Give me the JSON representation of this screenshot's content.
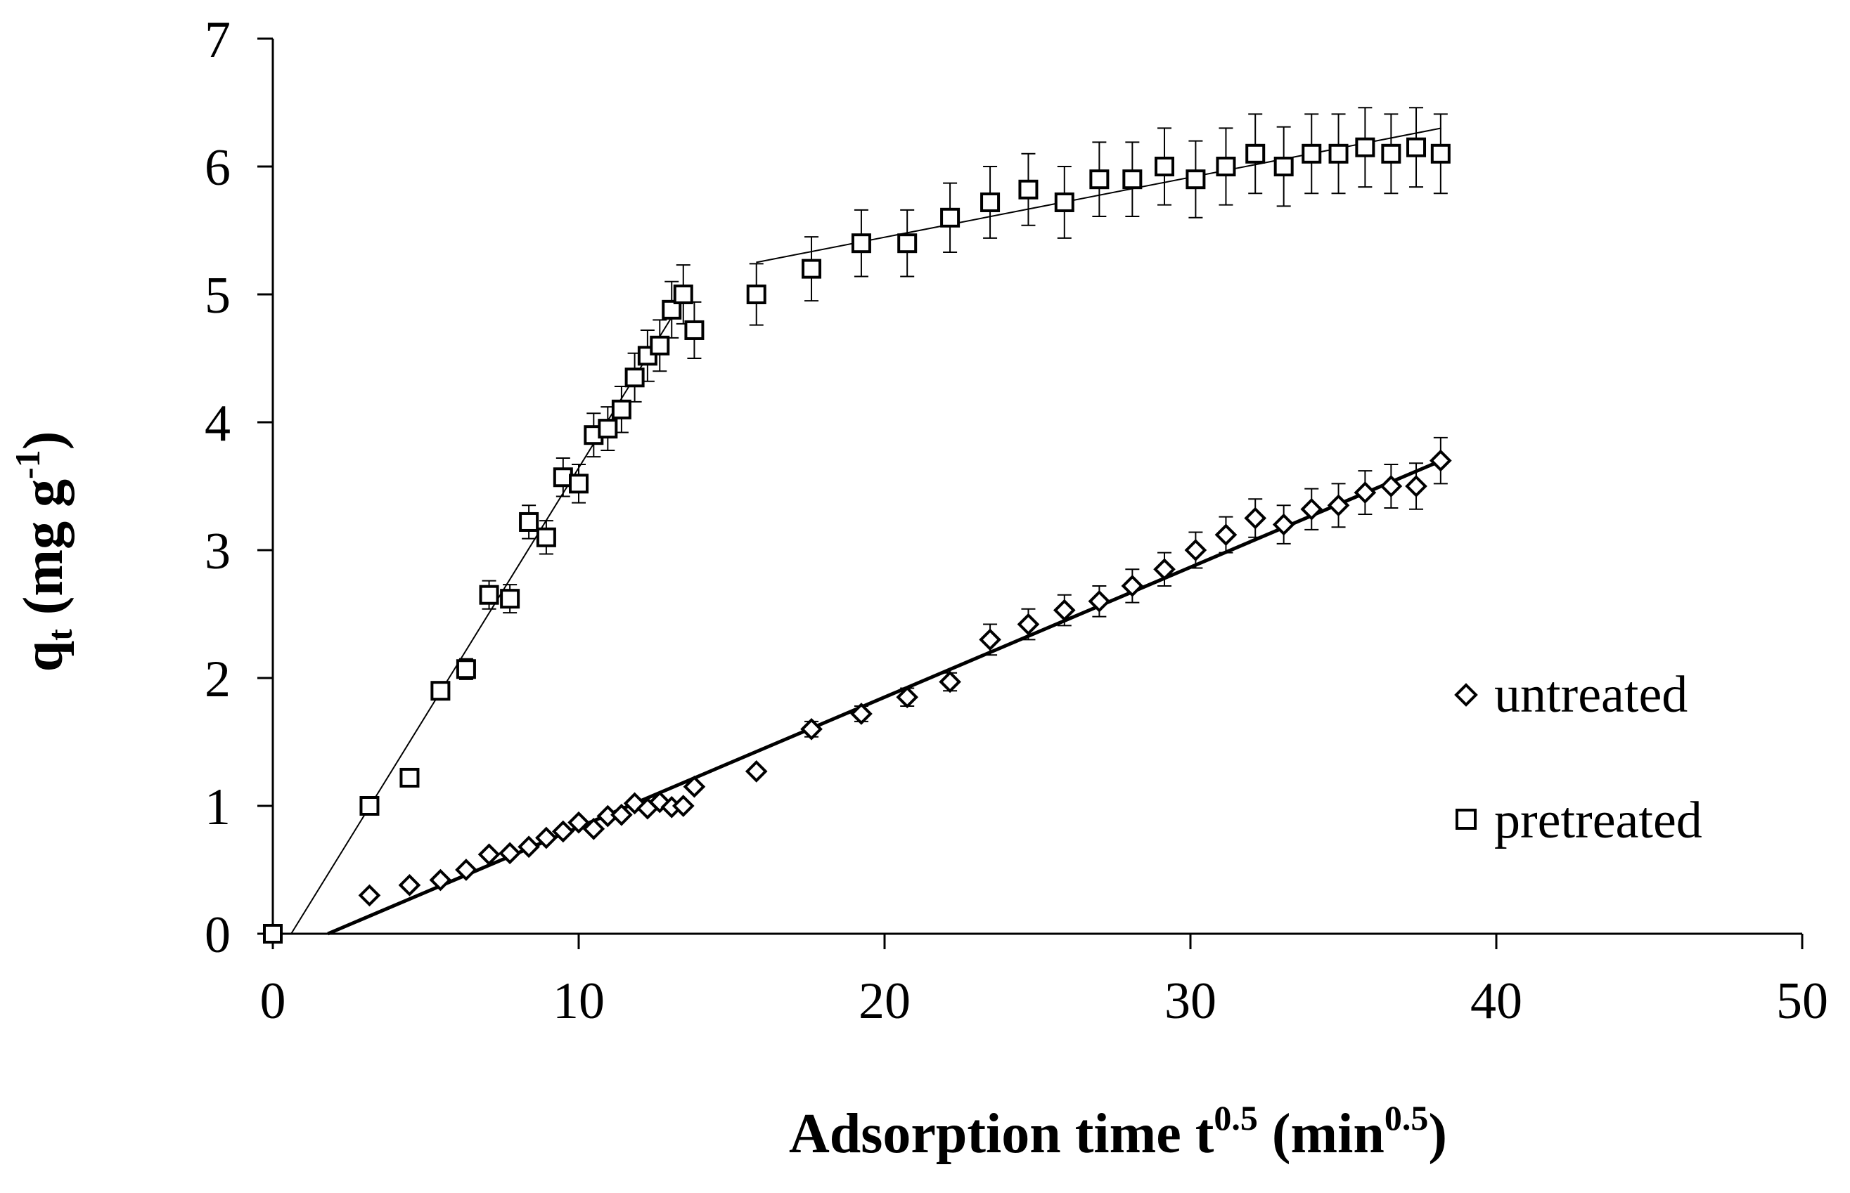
{
  "chart_data": {
    "type": "scatter",
    "title": "",
    "xlabel": {
      "base": "Adsorption time t",
      "sup": "0.5",
      "unit_open": " (min",
      "unit_sup": "0.5",
      "unit_close": ")"
    },
    "ylabel": {
      "base": "q",
      "sub": "t",
      "unit": " (mg g",
      "unit_sup": "-1",
      "unit_close": ")"
    },
    "xlim": [
      0,
      50
    ],
    "ylim": [
      0,
      7
    ],
    "xticks": [
      0,
      10,
      20,
      30,
      40,
      50
    ],
    "yticks": [
      0,
      1,
      2,
      3,
      4,
      5,
      6,
      7
    ],
    "grid": false,
    "legend_position": "right",
    "series": [
      {
        "name": "untreated",
        "marker": "diamond",
        "x": [
          0,
          3.16,
          4.47,
          5.48,
          6.32,
          7.07,
          7.75,
          8.37,
          8.94,
          9.49,
          10.0,
          10.49,
          10.95,
          11.4,
          11.83,
          12.25,
          12.65,
          13.04,
          13.42,
          13.78,
          15.81,
          17.61,
          19.24,
          20.74,
          22.14,
          23.45,
          24.7,
          25.88,
          27.02,
          28.1,
          29.15,
          30.17,
          31.16,
          32.12,
          33.05,
          33.96,
          34.84,
          35.71,
          36.56,
          37.38,
          38.18
        ],
        "y": [
          0,
          0.3,
          0.38,
          0.42,
          0.5,
          0.62,
          0.63,
          0.68,
          0.75,
          0.8,
          0.87,
          0.82,
          0.92,
          0.93,
          1.02,
          0.98,
          1.03,
          0.99,
          1.0,
          1.15,
          1.27,
          1.6,
          1.72,
          1.85,
          1.97,
          2.3,
          2.42,
          2.53,
          2.6,
          2.72,
          2.85,
          3.0,
          3.12,
          3.25,
          3.2,
          3.32,
          3.35,
          3.45,
          3.5,
          3.5,
          3.7
        ],
        "error": [
          0,
          0,
          0,
          0,
          0,
          0,
          0,
          0,
          0,
          0,
          0,
          0,
          0,
          0,
          0,
          0,
          0,
          0,
          0,
          0,
          0,
          0.06,
          0.06,
          0.07,
          0.07,
          0.12,
          0.12,
          0.12,
          0.12,
          0.13,
          0.13,
          0.14,
          0.14,
          0.15,
          0.15,
          0.16,
          0.17,
          0.17,
          0.17,
          0.18,
          0.18
        ],
        "fit_line": {
          "x": [
            1.8,
            38.2
          ],
          "y": [
            0,
            3.7
          ]
        }
      },
      {
        "name": "pretreated",
        "marker": "square",
        "x": [
          0,
          3.16,
          4.47,
          5.48,
          6.32,
          7.07,
          7.75,
          8.37,
          8.94,
          9.49,
          10.0,
          10.49,
          10.95,
          11.4,
          11.83,
          12.25,
          12.65,
          13.04,
          13.42,
          13.78,
          15.81,
          17.61,
          19.24,
          20.74,
          22.14,
          23.45,
          24.7,
          25.88,
          27.02,
          28.1,
          29.15,
          30.17,
          31.16,
          32.12,
          33.05,
          33.96,
          34.84,
          35.71,
          36.56,
          37.38,
          38.18
        ],
        "y": [
          0,
          1.0,
          1.22,
          1.9,
          2.07,
          2.65,
          2.62,
          3.22,
          3.1,
          3.57,
          3.52,
          3.9,
          3.95,
          4.1,
          4.35,
          4.52,
          4.6,
          4.88,
          5.0,
          4.72,
          5.0,
          5.2,
          5.4,
          5.4,
          5.6,
          5.72,
          5.82,
          5.72,
          5.9,
          5.9,
          6.0,
          5.9,
          6.0,
          6.1,
          6.0,
          6.1,
          6.1,
          6.15,
          6.1,
          6.15,
          6.1
        ],
        "error": [
          0,
          0,
          0,
          0.07,
          0.08,
          0.11,
          0.11,
          0.13,
          0.13,
          0.15,
          0.15,
          0.17,
          0.17,
          0.18,
          0.19,
          0.2,
          0.2,
          0.22,
          0.23,
          0.22,
          0.24,
          0.25,
          0.26,
          0.26,
          0.27,
          0.28,
          0.28,
          0.28,
          0.29,
          0.29,
          0.3,
          0.3,
          0.3,
          0.31,
          0.31,
          0.31,
          0.31,
          0.31,
          0.31,
          0.31,
          0.31
        ],
        "fit_lines": [
          {
            "x": [
              0.6,
              13.5
            ],
            "y": [
              0,
              5.0
            ]
          },
          {
            "x": [
              15.8,
              38.2
            ],
            "y": [
              5.25,
              6.3
            ]
          }
        ]
      }
    ]
  }
}
